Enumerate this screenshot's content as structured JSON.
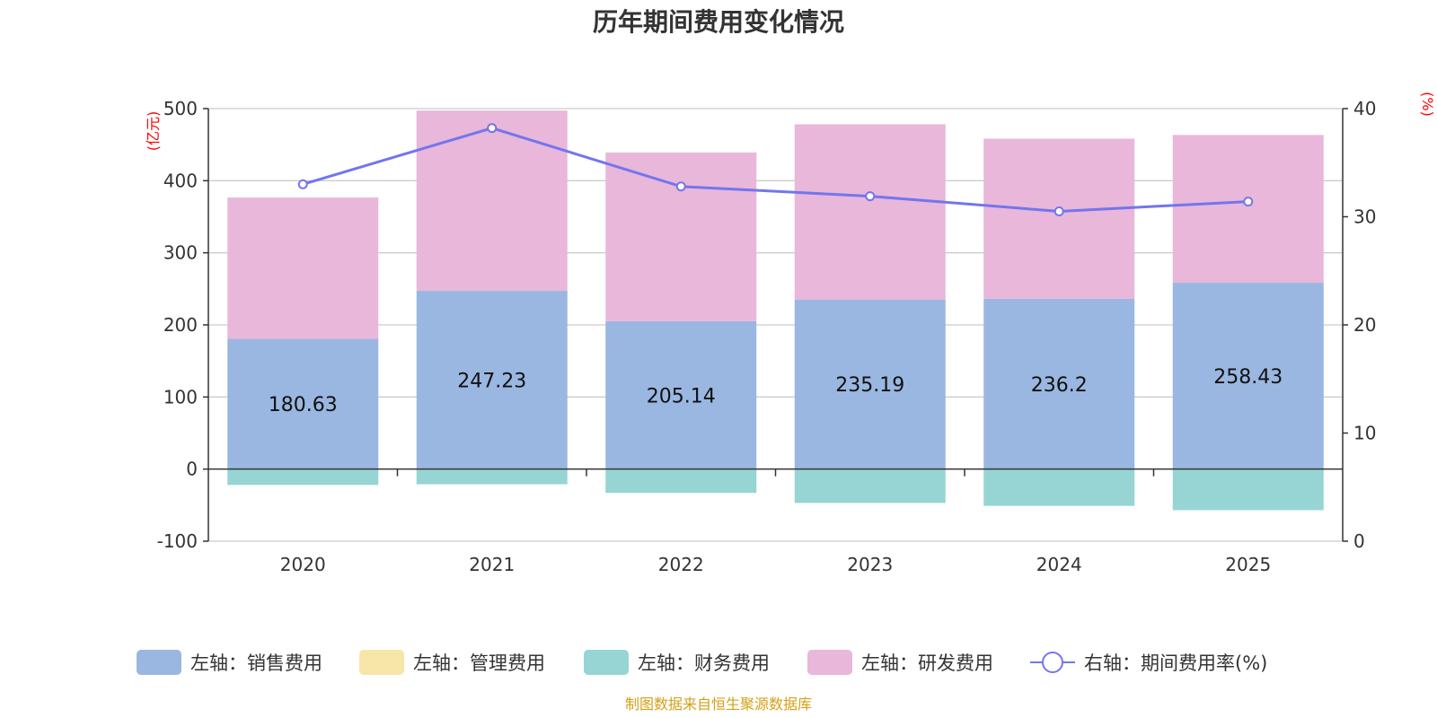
{
  "title": "历年期间费用变化情况",
  "source": "制图数据来自恒生聚源数据库",
  "colors": {
    "sales": "#9ab7e1",
    "admin": "#f8e6a8",
    "finance": "#96d5d4",
    "rd": "#e8b7d9",
    "rate": "#7375ee",
    "axis_title": "#ff0000",
    "grid": "#cccccc",
    "axis": "#333333",
    "source": "#d4a017"
  },
  "chart_data": {
    "type": "bar",
    "stacked": true,
    "title": "历年期间费用变化情况",
    "categories": [
      "2020",
      "2021",
      "2022",
      "2023",
      "2024",
      "2025"
    ],
    "left_axis": {
      "label": "(亿元)",
      "ylim": [
        -100,
        500
      ],
      "ticks": [
        -100,
        0,
        100,
        200,
        300,
        400,
        500
      ]
    },
    "right_axis": {
      "label": "(%)",
      "ylim": [
        0,
        40
      ],
      "ticks": [
        0,
        10,
        20,
        30,
        40
      ]
    },
    "series": [
      {
        "key": "sales",
        "name": "左轴：销售费用",
        "type": "bar",
        "axis": "left",
        "values": [
          180.63,
          247.23,
          205.14,
          235.19,
          236.2,
          258.43
        ],
        "labels": [
          "180.63",
          "247.23",
          "205.14",
          "235.19",
          "236.2",
          "258.43"
        ]
      },
      {
        "key": "admin",
        "name": "左轴：管理费用",
        "type": "bar",
        "axis": "left",
        "values": [
          0,
          0,
          0,
          0,
          0,
          0
        ]
      },
      {
        "key": "finance",
        "name": "左轴：财务费用",
        "type": "bar",
        "axis": "left",
        "values": [
          -22,
          -21,
          -33,
          -47,
          -51,
          -57
        ]
      },
      {
        "key": "rd",
        "name": "左轴：研发费用",
        "type": "bar",
        "axis": "left",
        "values": [
          196,
          250,
          234,
          243,
          222,
          205
        ]
      },
      {
        "key": "rate",
        "name": "右轴：期间费用率(%)",
        "type": "line",
        "axis": "right",
        "values": [
          33.0,
          38.2,
          32.8,
          31.9,
          30.5,
          31.4
        ]
      }
    ],
    "legend_position": "bottom"
  }
}
